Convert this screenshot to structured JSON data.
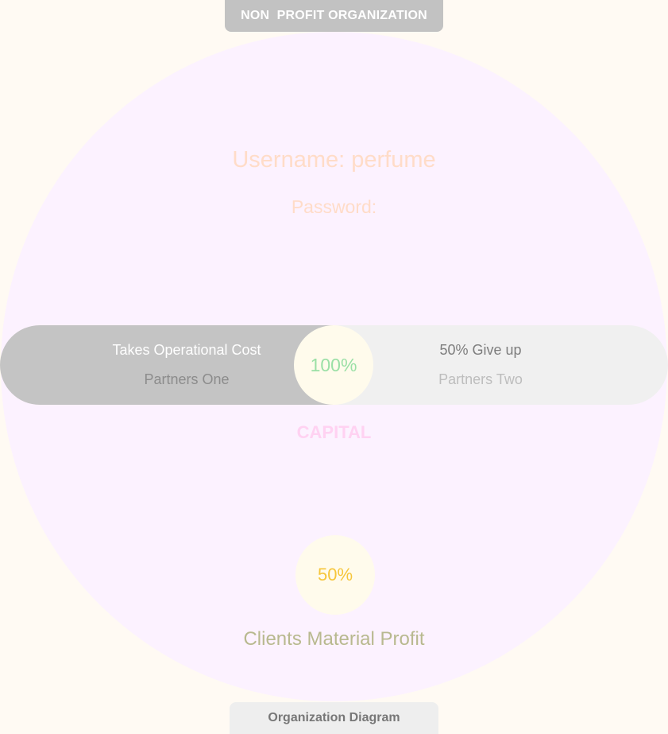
{
  "header": {
    "title": "NON  PROFIT ORGANIZATION"
  },
  "credentials": {
    "username_label": "Username: perfume",
    "password_label": "Password:"
  },
  "partners": {
    "one": {
      "title": "Takes Operational Cost",
      "name": "Partners One"
    },
    "two": {
      "title": "50% Give up",
      "name": "Partners Two"
    },
    "center_value": "100%"
  },
  "capital_label": "CAPITAL",
  "clients": {
    "value": "50%",
    "label": "Clients Material Profit"
  },
  "footer": {
    "label": "Organization Diagram"
  },
  "colors": {
    "page_background": "#fffaf3",
    "main_circle": "#fcf2ff",
    "partners_one_band": "#c4c4c4",
    "partners_two_band": "#f0f0f0",
    "center_circle": "#fffbec",
    "center_value_text": "#9be0a6",
    "credentials_text": "#ffdcc8",
    "capital_text": "#ffd2f2",
    "clients_value_text": "#f6c63b",
    "clients_label_text": "#b8b98f"
  }
}
